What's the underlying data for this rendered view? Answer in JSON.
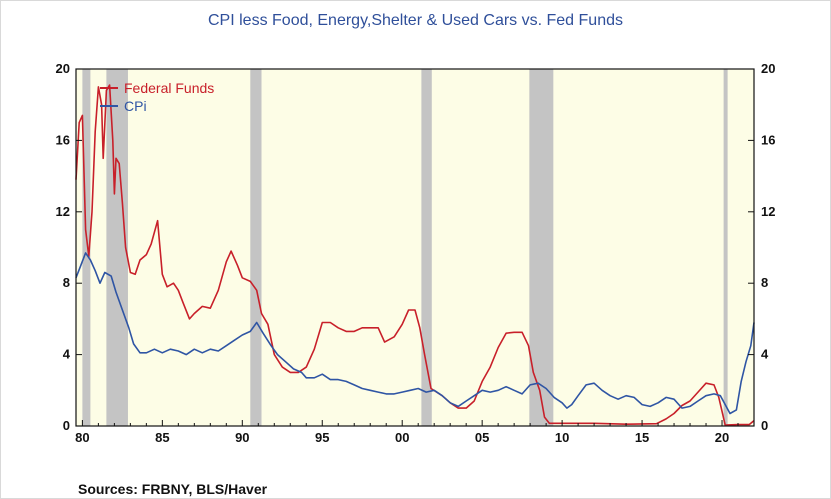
{
  "title": "CPI less Food, Energy,Shelter & Used Cars vs. Fed Funds",
  "source": "Sources:  FRBNY, BLS/Haver",
  "colors": {
    "fed": "#c8202a",
    "cpi": "#2f55a4",
    "background": "#fdfde6",
    "recession": "#c4c4c4",
    "axis": "#111111"
  },
  "chart_data": {
    "type": "line",
    "title": "CPI less Food, Energy,Shelter & Used Cars vs. Fed Funds",
    "xlabel": "",
    "ylabel": "",
    "xlim": [
      1979.6,
      2022.0
    ],
    "ylim": [
      0,
      20
    ],
    "yticks": [
      0,
      4,
      8,
      12,
      16,
      20
    ],
    "xticks": [
      {
        "value": 1980,
        "label": "80"
      },
      {
        "value": 1985,
        "label": "85"
      },
      {
        "value": 1990,
        "label": "90"
      },
      {
        "value": 1995,
        "label": "95"
      },
      {
        "value": 2000,
        "label": "00"
      },
      {
        "value": 2005,
        "label": "05"
      },
      {
        "value": 2010,
        "label": "10"
      },
      {
        "value": 2015,
        "label": "15"
      },
      {
        "value": 2020,
        "label": "20"
      }
    ],
    "legend_position": "top-left",
    "recessions": [
      [
        1980.0,
        1980.5
      ],
      [
        1981.5,
        1982.85
      ],
      [
        1990.5,
        1991.2
      ],
      [
        2001.2,
        2001.85
      ],
      [
        2007.95,
        2009.45
      ],
      [
        2020.1,
        2020.35
      ]
    ],
    "series": [
      {
        "name": "Federal Funds",
        "color": "#c8202a",
        "points": [
          [
            1979.6,
            13.8
          ],
          [
            1979.8,
            17.0
          ],
          [
            1980.0,
            17.4
          ],
          [
            1980.2,
            11.0
          ],
          [
            1980.4,
            9.5
          ],
          [
            1980.6,
            12.0
          ],
          [
            1980.8,
            16.5
          ],
          [
            1981.0,
            19.0
          ],
          [
            1981.2,
            18.0
          ],
          [
            1981.3,
            15.0
          ],
          [
            1981.5,
            18.8
          ],
          [
            1981.7,
            19.1
          ],
          [
            1981.9,
            16.0
          ],
          [
            1982.0,
            13.0
          ],
          [
            1982.1,
            15.0
          ],
          [
            1982.3,
            14.7
          ],
          [
            1982.5,
            12.5
          ],
          [
            1982.7,
            10.0
          ],
          [
            1983.0,
            8.6
          ],
          [
            1983.3,
            8.5
          ],
          [
            1983.6,
            9.3
          ],
          [
            1984.0,
            9.6
          ],
          [
            1984.3,
            10.2
          ],
          [
            1984.7,
            11.5
          ],
          [
            1985.0,
            8.5
          ],
          [
            1985.3,
            7.8
          ],
          [
            1985.7,
            8.0
          ],
          [
            1986.0,
            7.6
          ],
          [
            1986.3,
            6.9
          ],
          [
            1986.7,
            6.0
          ],
          [
            1987.0,
            6.3
          ],
          [
            1987.5,
            6.7
          ],
          [
            1988.0,
            6.6
          ],
          [
            1988.5,
            7.6
          ],
          [
            1989.0,
            9.2
          ],
          [
            1989.3,
            9.8
          ],
          [
            1989.7,
            9.0
          ],
          [
            1990.0,
            8.3
          ],
          [
            1990.5,
            8.1
          ],
          [
            1990.9,
            7.6
          ],
          [
            1991.2,
            6.3
          ],
          [
            1991.6,
            5.7
          ],
          [
            1992.0,
            4.0
          ],
          [
            1992.5,
            3.3
          ],
          [
            1993.0,
            3.0
          ],
          [
            1993.5,
            3.0
          ],
          [
            1994.0,
            3.3
          ],
          [
            1994.5,
            4.3
          ],
          [
            1995.0,
            5.8
          ],
          [
            1995.5,
            5.8
          ],
          [
            1996.0,
            5.5
          ],
          [
            1996.5,
            5.3
          ],
          [
            1997.0,
            5.3
          ],
          [
            1997.5,
            5.5
          ],
          [
            1998.0,
            5.5
          ],
          [
            1998.5,
            5.5
          ],
          [
            1998.9,
            4.7
          ],
          [
            1999.5,
            5.0
          ],
          [
            2000.0,
            5.7
          ],
          [
            2000.4,
            6.5
          ],
          [
            2000.8,
            6.5
          ],
          [
            2001.1,
            5.5
          ],
          [
            2001.4,
            4.0
          ],
          [
            2001.8,
            2.1
          ],
          [
            2002.5,
            1.7
          ],
          [
            2003.0,
            1.3
          ],
          [
            2003.5,
            1.0
          ],
          [
            2004.0,
            1.0
          ],
          [
            2004.5,
            1.4
          ],
          [
            2005.0,
            2.5
          ],
          [
            2005.5,
            3.3
          ],
          [
            2006.0,
            4.4
          ],
          [
            2006.5,
            5.2
          ],
          [
            2007.0,
            5.25
          ],
          [
            2007.5,
            5.25
          ],
          [
            2007.9,
            4.5
          ],
          [
            2008.2,
            3.0
          ],
          [
            2008.6,
            2.0
          ],
          [
            2008.9,
            0.5
          ],
          [
            2009.2,
            0.15
          ],
          [
            2010.0,
            0.15
          ],
          [
            2012.0,
            0.15
          ],
          [
            2014.0,
            0.1
          ],
          [
            2015.9,
            0.13
          ],
          [
            2016.5,
            0.4
          ],
          [
            2017.0,
            0.7
          ],
          [
            2017.5,
            1.15
          ],
          [
            2018.0,
            1.4
          ],
          [
            2018.5,
            1.9
          ],
          [
            2019.0,
            2.4
          ],
          [
            2019.5,
            2.3
          ],
          [
            2019.8,
            1.6
          ],
          [
            2020.2,
            0.05
          ],
          [
            2021.0,
            0.08
          ],
          [
            2021.7,
            0.08
          ],
          [
            2022.0,
            0.3
          ]
        ]
      },
      {
        "name": "CPi",
        "color": "#2f55a4",
        "points": [
          [
            1979.6,
            8.3
          ],
          [
            1979.9,
            9.0
          ],
          [
            1980.2,
            9.7
          ],
          [
            1980.5,
            9.3
          ],
          [
            1980.8,
            8.7
          ],
          [
            1981.1,
            8.0
          ],
          [
            1981.4,
            8.6
          ],
          [
            1981.8,
            8.4
          ],
          [
            1982.1,
            7.5
          ],
          [
            1982.5,
            6.5
          ],
          [
            1982.9,
            5.5
          ],
          [
            1983.2,
            4.6
          ],
          [
            1983.6,
            4.1
          ],
          [
            1984.0,
            4.1
          ],
          [
            1984.5,
            4.3
          ],
          [
            1985.0,
            4.1
          ],
          [
            1985.5,
            4.3
          ],
          [
            1986.0,
            4.2
          ],
          [
            1986.5,
            4.0
          ],
          [
            1987.0,
            4.3
          ],
          [
            1987.5,
            4.1
          ],
          [
            1988.0,
            4.3
          ],
          [
            1988.5,
            4.2
          ],
          [
            1989.0,
            4.5
          ],
          [
            1989.5,
            4.8
          ],
          [
            1990.0,
            5.1
          ],
          [
            1990.5,
            5.3
          ],
          [
            1990.9,
            5.8
          ],
          [
            1991.3,
            5.2
          ],
          [
            1991.8,
            4.5
          ],
          [
            1992.2,
            4.0
          ],
          [
            1992.7,
            3.6
          ],
          [
            1993.2,
            3.2
          ],
          [
            1993.7,
            3.0
          ],
          [
            1994.0,
            2.7
          ],
          [
            1994.5,
            2.7
          ],
          [
            1995.0,
            2.9
          ],
          [
            1995.5,
            2.6
          ],
          [
            1996.0,
            2.6
          ],
          [
            1996.5,
            2.5
          ],
          [
            1997.0,
            2.3
          ],
          [
            1997.5,
            2.1
          ],
          [
            1998.0,
            2.0
          ],
          [
            1998.5,
            1.9
          ],
          [
            1999.0,
            1.8
          ],
          [
            1999.5,
            1.8
          ],
          [
            2000.0,
            1.9
          ],
          [
            2000.5,
            2.0
          ],
          [
            2001.0,
            2.1
          ],
          [
            2001.5,
            1.9
          ],
          [
            2002.0,
            2.0
          ],
          [
            2002.5,
            1.7
          ],
          [
            2003.0,
            1.3
          ],
          [
            2003.5,
            1.1
          ],
          [
            2004.0,
            1.4
          ],
          [
            2004.5,
            1.7
          ],
          [
            2005.0,
            2.0
          ],
          [
            2005.5,
            1.9
          ],
          [
            2006.0,
            2.0
          ],
          [
            2006.5,
            2.2
          ],
          [
            2007.0,
            2.0
          ],
          [
            2007.5,
            1.8
          ],
          [
            2008.0,
            2.3
          ],
          [
            2008.5,
            2.4
          ],
          [
            2009.0,
            2.1
          ],
          [
            2009.5,
            1.6
          ],
          [
            2010.0,
            1.3
          ],
          [
            2010.3,
            1.0
          ],
          [
            2010.6,
            1.2
          ],
          [
            2011.0,
            1.7
          ],
          [
            2011.5,
            2.3
          ],
          [
            2012.0,
            2.4
          ],
          [
            2012.5,
            2.0
          ],
          [
            2013.0,
            1.7
          ],
          [
            2013.5,
            1.5
          ],
          [
            2014.0,
            1.7
          ],
          [
            2014.5,
            1.6
          ],
          [
            2015.0,
            1.2
          ],
          [
            2015.5,
            1.1
          ],
          [
            2016.0,
            1.3
          ],
          [
            2016.5,
            1.6
          ],
          [
            2017.0,
            1.5
          ],
          [
            2017.5,
            1.0
          ],
          [
            2018.0,
            1.1
          ],
          [
            2018.5,
            1.4
          ],
          [
            2019.0,
            1.7
          ],
          [
            2019.5,
            1.8
          ],
          [
            2019.9,
            1.7
          ],
          [
            2020.2,
            1.2
          ],
          [
            2020.5,
            0.7
          ],
          [
            2020.9,
            0.9
          ],
          [
            2021.2,
            2.5
          ],
          [
            2021.5,
            3.6
          ],
          [
            2021.8,
            4.5
          ],
          [
            2022.0,
            5.8
          ]
        ]
      }
    ]
  }
}
